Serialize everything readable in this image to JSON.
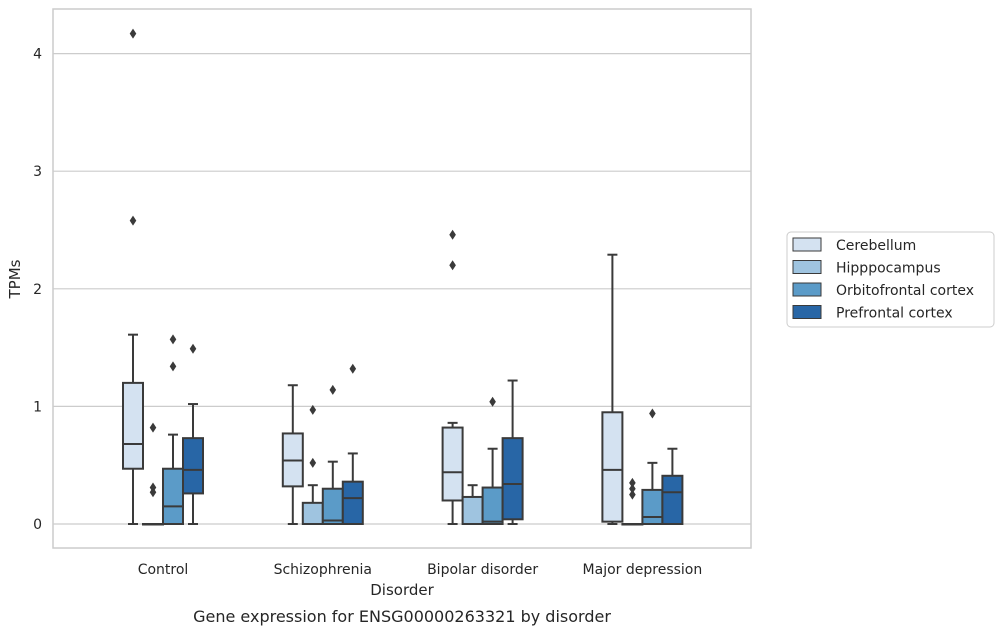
{
  "caption": "Gene expression for ENSG00000263321 by disorder",
  "chart_data": {
    "type": "box",
    "xlabel": "Disorder",
    "ylabel": "TPMs",
    "ylim": [
      -0.2,
      4.4
    ],
    "yticks": [
      0,
      1,
      2,
      3,
      4
    ],
    "ytick_labels": [
      "0",
      "1",
      "2",
      "3",
      "4"
    ],
    "grid": "horizontal",
    "legend_position": "right",
    "categories": [
      "Control",
      "Schizophrenia",
      "Bipolar disorder",
      "Major depression"
    ],
    "series": [
      {
        "name": "Cerebellum",
        "color": "#d4e2f1",
        "boxes": [
          {
            "whisker_low": 0,
            "q1": 0.47,
            "median": 0.68,
            "q3": 1.2,
            "whisker_high": 1.61,
            "outliers": [
              2.58,
              4.17
            ]
          },
          {
            "whisker_low": 0,
            "q1": 0.32,
            "median": 0.54,
            "q3": 0.77,
            "whisker_high": 1.18,
            "outliers": []
          },
          {
            "whisker_low": 0,
            "q1": 0.2,
            "median": 0.44,
            "q3": 0.82,
            "whisker_high": 0.86,
            "outliers": [
              2.2,
              2.46
            ]
          },
          {
            "whisker_low": 0,
            "q1": 0.02,
            "median": 0.46,
            "q3": 0.95,
            "whisker_high": 2.29,
            "outliers": []
          }
        ]
      },
      {
        "name": "Hipppocampus",
        "color": "#9fc4e0",
        "boxes": [
          {
            "whisker_low": 0,
            "q1": 0,
            "median": 0,
            "q3": 0,
            "whisker_high": 0,
            "outliers": [
              0.27,
              0.31,
              0.82
            ]
          },
          {
            "whisker_low": 0,
            "q1": 0,
            "median": 0,
            "q3": 0.18,
            "whisker_high": 0.33,
            "outliers": [
              0.52,
              0.97
            ]
          },
          {
            "whisker_low": 0,
            "q1": 0,
            "median": 0,
            "q3": 0.23,
            "whisker_high": 0.33,
            "outliers": []
          },
          {
            "whisker_low": 0,
            "q1": 0,
            "median": 0,
            "q3": 0,
            "whisker_high": 0,
            "outliers": [
              0.25,
              0.3,
              0.35
            ]
          }
        ]
      },
      {
        "name": "Orbitofrontal cortex",
        "color": "#5b9bc8",
        "boxes": [
          {
            "whisker_low": 0,
            "q1": 0,
            "median": 0.15,
            "q3": 0.47,
            "whisker_high": 0.76,
            "outliers": [
              1.34,
              1.57
            ]
          },
          {
            "whisker_low": 0,
            "q1": 0,
            "median": 0.03,
            "q3": 0.3,
            "whisker_high": 0.53,
            "outliers": [
              1.14
            ]
          },
          {
            "whisker_low": 0,
            "q1": 0,
            "median": 0.02,
            "q3": 0.31,
            "whisker_high": 0.64,
            "outliers": [
              1.04
            ]
          },
          {
            "whisker_low": 0,
            "q1": 0,
            "median": 0.06,
            "q3": 0.29,
            "whisker_high": 0.52,
            "outliers": [
              0.94
            ]
          }
        ]
      },
      {
        "name": "Prefrontal cortex",
        "color": "#2866a6",
        "boxes": [
          {
            "whisker_low": 0,
            "q1": 0.26,
            "median": 0.46,
            "q3": 0.73,
            "whisker_high": 1.02,
            "outliers": [
              1.49
            ]
          },
          {
            "whisker_low": 0,
            "q1": 0,
            "median": 0.22,
            "q3": 0.36,
            "whisker_high": 0.6,
            "outliers": [
              1.32
            ]
          },
          {
            "whisker_low": 0,
            "q1": 0.04,
            "median": 0.34,
            "q3": 0.73,
            "whisker_high": 1.22,
            "outliers": []
          },
          {
            "whisker_low": 0,
            "q1": 0,
            "median": 0.27,
            "q3": 0.41,
            "whisker_high": 0.64,
            "outliers": []
          }
        ]
      }
    ]
  }
}
